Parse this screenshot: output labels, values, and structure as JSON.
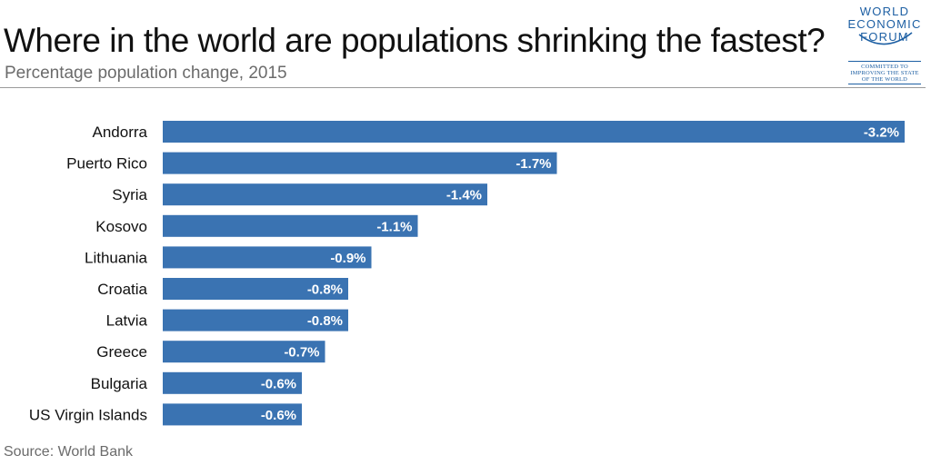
{
  "header": {
    "title": "Where in the world are populations shrinking the fastest?",
    "subtitle": "Percentage population change, 2015"
  },
  "logo": {
    "line1": "WORLD",
    "line2": "ECONOMIC",
    "line3": "FORUM",
    "tagline1": "COMMITTED TO",
    "tagline2": "IMPROVING THE STATE",
    "tagline3": "OF THE WORLD",
    "color": "#1d5fa3"
  },
  "footer": {
    "source": "Source: World Bank"
  },
  "chart_data": {
    "type": "bar",
    "orientation": "horizontal",
    "categories": [
      "Andorra",
      "Puerto Rico",
      "Syria",
      "Kosovo",
      "Lithuania",
      "Croatia",
      "Latvia",
      "Greece",
      "Bulgaria",
      "US Virgin Islands"
    ],
    "values": [
      -3.2,
      -1.7,
      -1.4,
      -1.1,
      -0.9,
      -0.8,
      -0.8,
      -0.7,
      -0.6,
      -0.6
    ],
    "data_labels": [
      "-3.2%",
      "-1.7%",
      "-1.4%",
      "-1.1%",
      "-0.9%",
      "-0.8%",
      "-0.8%",
      "-0.7%",
      "-0.6%",
      "-0.6%"
    ],
    "bar_color": "#3a73b2",
    "label_color": "#ffffff",
    "xlim": [
      0,
      3.2
    ],
    "grid": false,
    "legend": "none"
  }
}
